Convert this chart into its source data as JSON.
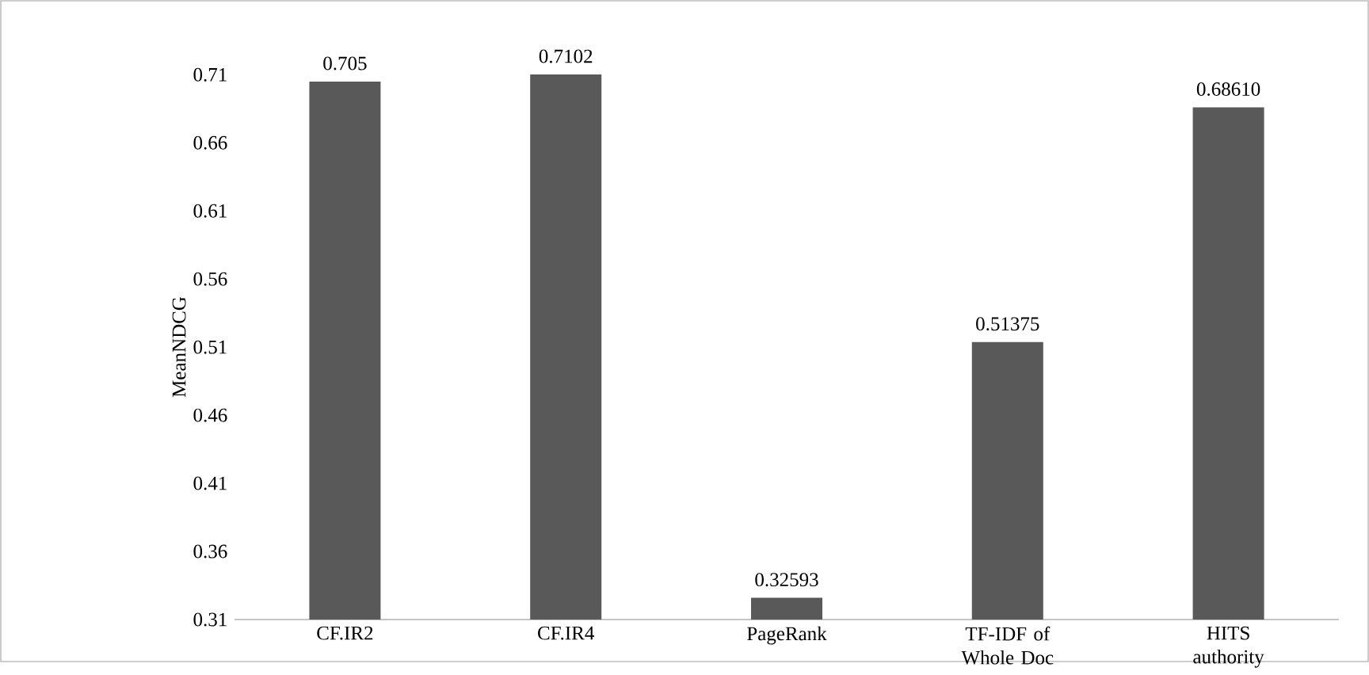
{
  "chart_data": {
    "type": "bar",
    "categories": [
      "CF.IR2",
      "CF.IR4",
      "PageRank",
      "TF-IDF of Whole Doc",
      "HITS authority"
    ],
    "values": [
      0.705,
      0.7102,
      0.32593,
      0.51375,
      0.6861
    ],
    "value_labels": [
      "0.705",
      "0.7102",
      "0.32593",
      "0.51375",
      "0.68610"
    ],
    "color": "#595959",
    "ylabel": "MeanNDCG",
    "ylim": [
      0.31,
      0.7102
    ],
    "yticks": [
      0.31,
      0.36,
      0.41,
      0.46,
      0.51,
      0.56,
      0.61,
      0.66,
      0.71
    ]
  }
}
